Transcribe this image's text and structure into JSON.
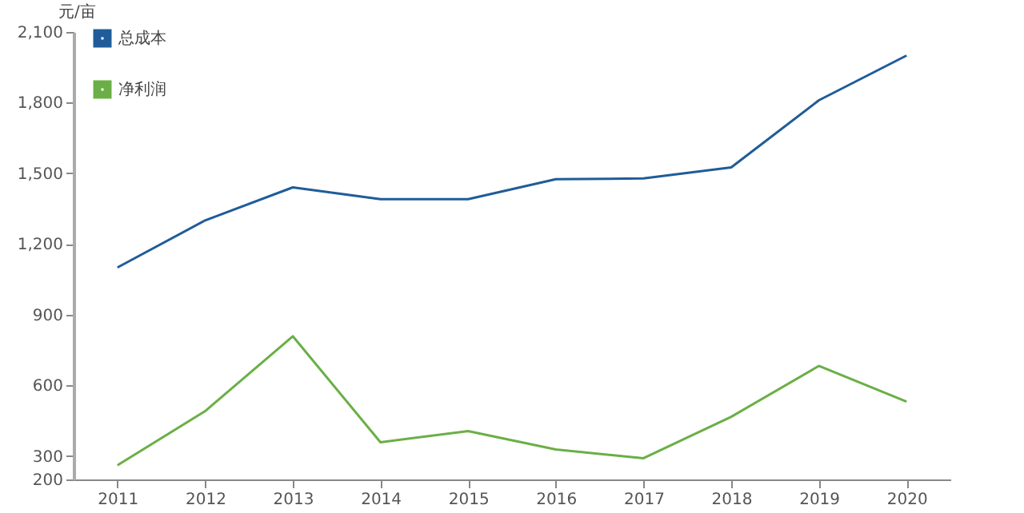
{
  "chart_data": {
    "type": "line",
    "ylabel": "元/亩",
    "categories": [
      "2011",
      "2012",
      "2013",
      "2014",
      "2015",
      "2016",
      "2017",
      "2018",
      "2019",
      "2020"
    ],
    "series": [
      {
        "name": "总成本",
        "color": "#1f5c99",
        "values": [
          1100,
          1300,
          1440,
          1390,
          1390,
          1475,
          1478,
          1525,
          1810,
          2000
        ]
      },
      {
        "name": "净利润",
        "color": "#6aaf46",
        "values": [
          260,
          490,
          808,
          358,
          405,
          327,
          290,
          466,
          682,
          530
        ]
      }
    ],
    "ylim": [
      200,
      2100
    ],
    "yticks": [
      200,
      300,
      600,
      900,
      {
        "value": 1200,
        "label": "1,200"
      },
      {
        "value": 1500,
        "label": "1,500"
      },
      {
        "value": 1800,
        "label": "1,800"
      },
      {
        "value": 2100,
        "label": "2,100"
      }
    ],
    "grid": false,
    "legend": "top left",
    "marker": "none",
    "line_style": "solid"
  }
}
